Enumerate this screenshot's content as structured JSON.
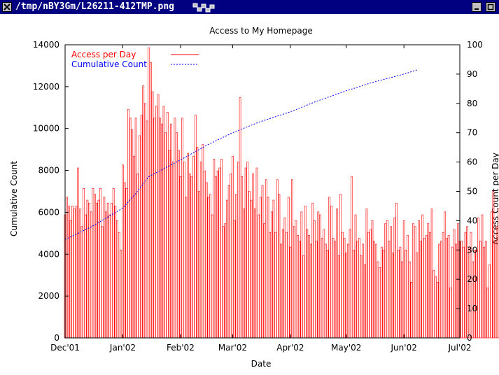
{
  "window": {
    "title": "/tmp/nBY3Gm/L26211-412TMP.png"
  },
  "colors": {
    "titlebar": "#000080",
    "access_series": "#ff0000",
    "cumulative_series": "#0000ff",
    "axis": "#000000"
  },
  "chart_data": {
    "type": "bar",
    "title": "Access to My Homepage",
    "xlabel": "Date",
    "ylabel": "Cumulative Count",
    "y2label": "Access Count per Day",
    "ylim": [
      0,
      14000
    ],
    "y2lim": [
      0,
      100
    ],
    "xlim": [
      "2001-12-01",
      "2002-07-01"
    ],
    "xticks": [
      "Dec'01",
      "Jan'02",
      "Feb'02",
      "Mar'02",
      "Apr'02",
      "May'02",
      "Jun'02",
      "Jul'02"
    ],
    "yticks": [
      "0",
      "2000",
      "4000",
      "6000",
      "8000",
      "10000",
      "12000",
      "14000"
    ],
    "y2ticks": [
      "0",
      "10",
      "20",
      "30",
      "40",
      "50",
      "60",
      "70",
      "80",
      "90",
      "100"
    ],
    "grid": false,
    "legend_position": "top-left",
    "series": [
      {
        "name": "Access per Day",
        "axis": "right",
        "style": "impulses",
        "x_start": "2001-12-01",
        "values": [
          42,
          48,
          45,
          40,
          45,
          44,
          45,
          58,
          44,
          38,
          51,
          42,
          47,
          46,
          43,
          51,
          49,
          46,
          47,
          51,
          38,
          48,
          43,
          46,
          42,
          46,
          51,
          45,
          40,
          36,
          30,
          59,
          53,
          51,
          78,
          75,
          71,
          62,
          75,
          56,
          69,
          76,
          86,
          80,
          74,
          99,
          94,
          84,
          75,
          79,
          83,
          75,
          73,
          79,
          70,
          77,
          64,
          73,
          60,
          75,
          70,
          64,
          55,
          75,
          60,
          48,
          63,
          56,
          55,
          62,
          76,
          65,
          50,
          60,
          66,
          57,
          53,
          48,
          49,
          42,
          61,
          55,
          57,
          58,
          61,
          38,
          39,
          47,
          52,
          56,
          62,
          40,
          49,
          60,
          82,
          55,
          44,
          58,
          60,
          50,
          47,
          56,
          44,
          58,
          42,
          48,
          52,
          39,
          54,
          48,
          36,
          43,
          47,
          36,
          54,
          49,
          32,
          37,
          41,
          36,
          48,
          31,
          54,
          38,
          40,
          35,
          33,
          43,
          28,
          45,
          37,
          35,
          32,
          46,
          40,
          33,
          43,
          42,
          34,
          37,
          32,
          30,
          48,
          45,
          34,
          33,
          44,
          28,
          49,
          36,
          34,
          29,
          32,
          37,
          55,
          30,
          42,
          33,
          34,
          28,
          32,
          25,
          44,
          36,
          37,
          40,
          33,
          32,
          26,
          24,
          31,
          30,
          39,
          40,
          33,
          38,
          29,
          41,
          46,
          30,
          31,
          26,
          40,
          30,
          35,
          26,
          19,
          39,
          38,
          29,
          40,
          33,
          42,
          34,
          35,
          39,
          36,
          44,
          23,
          21,
          19,
          32,
          33,
          36,
          43,
          34,
          35,
          17,
          31,
          37,
          32,
          39,
          33,
          33,
          31,
          36,
          38,
          31,
          36,
          26,
          30,
          30,
          41,
          33,
          42,
          31,
          33,
          17,
          25,
          43,
          50,
          33,
          38,
          44,
          46,
          29
        ]
      },
      {
        "name": "Cumulative Count",
        "axis": "left",
        "style": "dotted-line",
        "x": [
          "2001-12-01",
          "2001-12-15",
          "2002-01-01",
          "2002-01-08",
          "2002-01-15",
          "2002-02-01",
          "2002-02-15",
          "2002-03-01",
          "2002-03-15",
          "2002-04-01",
          "2002-04-15",
          "2002-05-01",
          "2002-05-15",
          "2002-06-01",
          "2002-06-08"
        ],
        "values": [
          4700,
          5300,
          6200,
          6900,
          7700,
          8500,
          9200,
          9800,
          10300,
          10800,
          11300,
          11800,
          12200,
          12600,
          12800
        ]
      }
    ]
  }
}
